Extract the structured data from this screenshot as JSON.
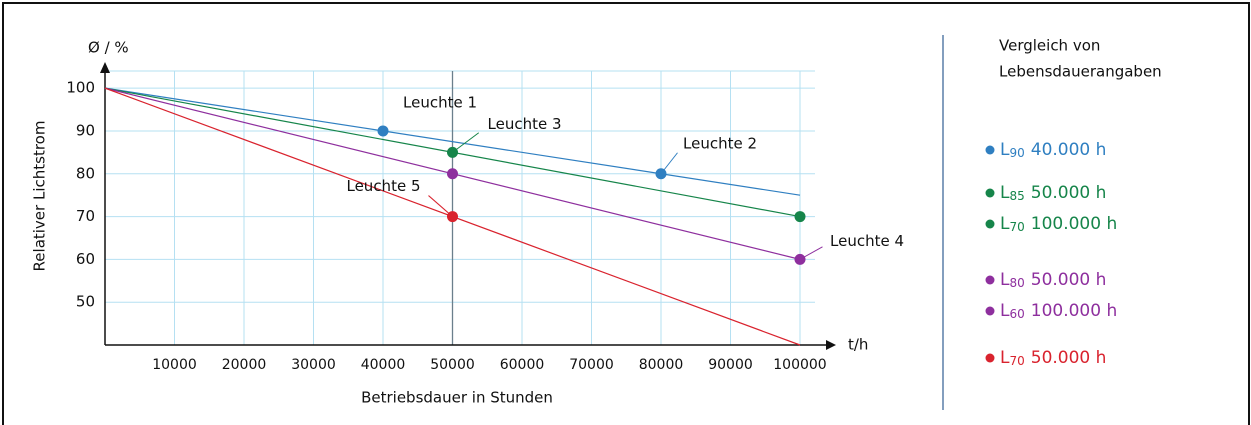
{
  "chart_data": {
    "type": "line",
    "y_label": "Relativer Lichtstrom",
    "x_label": "Betriebsdauer in Stunden",
    "y_unit": "Ø / %",
    "x_unit": "t/h",
    "xlim": [
      0,
      100000
    ],
    "ylim": [
      40,
      104
    ],
    "xticks": [
      10000,
      20000,
      30000,
      40000,
      50000,
      60000,
      70000,
      80000,
      90000,
      100000
    ],
    "yticks": [
      50,
      60,
      70,
      80,
      90,
      100
    ],
    "grid": true,
    "lines": [
      {
        "color": "#2f7fc1",
        "x": [
          0,
          100000
        ],
        "values": [
          100,
          75
        ]
      },
      {
        "color": "#16854a",
        "x": [
          0,
          100000
        ],
        "values": [
          100,
          70
        ]
      },
      {
        "color": "#8e2f9e",
        "x": [
          0,
          100000
        ],
        "values": [
          100,
          60
        ]
      },
      {
        "color": "#d9232e",
        "x": [
          0,
          100000
        ],
        "values": [
          100,
          40
        ]
      }
    ],
    "points": [
      {
        "label": "Leuchte 1",
        "color": "#2f7fc1",
        "x": 40000,
        "y": 90
      },
      {
        "label": "Leuchte 2",
        "color": "#2f7fc1",
        "x": 80000,
        "y": 80
      },
      {
        "label": "Leuchte 3",
        "color": "#16854a",
        "x": 50000,
        "y": 85
      },
      {
        "label": "Leuchte 4",
        "color": "#8e2f9e",
        "x": 100000,
        "y": 60
      },
      {
        "label": "Leuchte 5",
        "color": "#d9232e",
        "x": 50000,
        "y": 70
      },
      {
        "label": null,
        "color": "#16854a",
        "x": 100000,
        "y": 70
      },
      {
        "label": null,
        "color": "#8e2f9e",
        "x": 50000,
        "y": 80
      }
    ],
    "highlight_x": 50000,
    "legend": {
      "title": [
        "Vergleich von",
        "Lebensdauerangaben"
      ],
      "items": [
        {
          "color": "#2f7fc1",
          "symbol": "L",
          "sub": "90",
          "text": "40.000 h"
        },
        {
          "color": "#16854a",
          "symbol": "L",
          "sub": "85",
          "text": "50.000 h"
        },
        {
          "color": "#16854a",
          "symbol": "L",
          "sub": "70",
          "text": "100.000 h"
        },
        {
          "color": "#8e2f9e",
          "symbol": "L",
          "sub": "80",
          "text": "50.000 h"
        },
        {
          "color": "#8e2f9e",
          "symbol": "L",
          "sub": "60",
          "text": "100.000 h"
        },
        {
          "color": "#d9232e",
          "symbol": "L",
          "sub": "70",
          "text": "50.000 h"
        }
      ]
    }
  }
}
